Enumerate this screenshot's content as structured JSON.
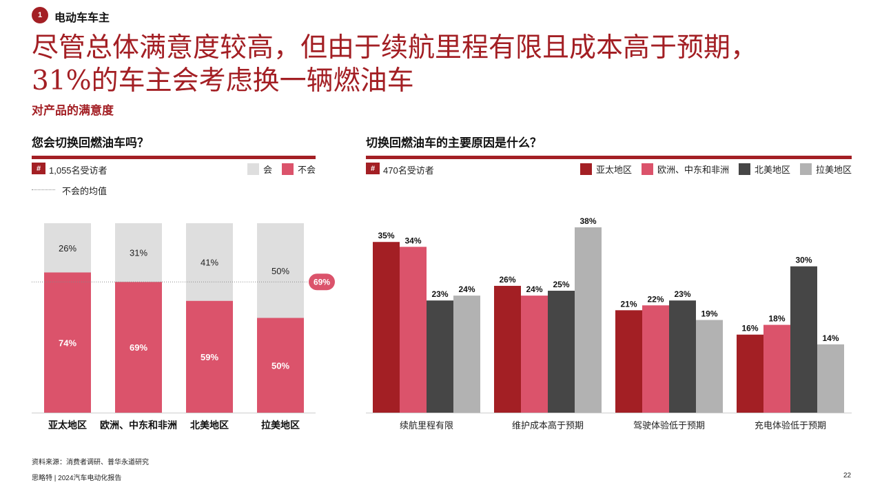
{
  "header": {
    "section_number": "1",
    "section_label": "电动车车主",
    "headline_line1": "尽管总体满意度较高，但由于续航里程有限且成本高于预期，",
    "headline_line2": "31%的车主会考虑换一辆燃油车",
    "subtitle": "对产品的满意度"
  },
  "left_panel": {
    "title": "您会切换回燃油车吗？",
    "hash_symbol": "#",
    "respondents": "1,055名受访者",
    "legend": [
      {
        "label": "会",
        "color": "#dedede"
      },
      {
        "label": "不会",
        "color": "#db536b"
      }
    ],
    "avg_line_label": "不会的均值",
    "avg_badge": "69%"
  },
  "right_panel": {
    "title": "切换回燃油车的主要原因是什么？",
    "hash_symbol": "#",
    "respondents": "470名受访者",
    "legend": [
      {
        "label": "亚太地区",
        "color": "#a31f24"
      },
      {
        "label": "欧洲、中东和非洲",
        "color": "#db536b"
      },
      {
        "label": "北美地区",
        "color": "#464646"
      },
      {
        "label": "拉美地区",
        "color": "#b2b2b2"
      }
    ]
  },
  "chart_data": [
    {
      "type": "bar",
      "stacked": true,
      "title": "您会切换回燃油车吗？",
      "categories": [
        "亚太地区",
        "欧洲、中东和非洲",
        "北美地区",
        "拉美地区"
      ],
      "series": [
        {
          "name": "不会",
          "values": [
            74,
            69,
            59,
            50
          ],
          "labels": [
            "74%",
            "69%",
            "59%",
            "50%"
          ],
          "color": "#db536b"
        },
        {
          "name": "会",
          "values": [
            26,
            31,
            41,
            50
          ],
          "labels": [
            "26%",
            "31%",
            "41%",
            "50%"
          ],
          "color": "#dedede"
        }
      ],
      "average": {
        "name": "不会的均值",
        "value": 69,
        "label": "69%"
      },
      "ylim": [
        0,
        100
      ],
      "legend_position": "top-right",
      "grid": false
    },
    {
      "type": "bar",
      "title": "切换回燃油车的主要原因是什么？",
      "categories": [
        "续航里程有限",
        "维护成本高于预期",
        "驾驶体验低于预期",
        "充电体验低于预期"
      ],
      "series": [
        {
          "name": "亚太地区",
          "values": [
            35,
            26,
            21,
            16
          ],
          "labels": [
            "35%",
            "26%",
            "21%",
            "16%"
          ],
          "color": "#a31f24"
        },
        {
          "name": "欧洲、中东和非洲",
          "values": [
            34,
            24,
            22,
            18
          ],
          "labels": [
            "34%",
            "24%",
            "22%",
            "18%"
          ],
          "color": "#db536b"
        },
        {
          "name": "北美地区",
          "values": [
            23,
            25,
            23,
            30
          ],
          "labels": [
            "23%",
            "25%",
            "23%",
            "30%"
          ],
          "color": "#464646"
        },
        {
          "name": "拉美地区",
          "values": [
            24,
            38,
            19,
            14
          ],
          "labels": [
            "24%",
            "38%",
            "19%",
            "14%"
          ],
          "color": "#b2b2b2"
        }
      ],
      "ylim": [
        0,
        38
      ],
      "legend_position": "top-right",
      "grid": false
    }
  ],
  "footer": {
    "source": "资料来源：消费者调研、普华永道研究",
    "publisher": "思略特 | 2024汽车电动化报告",
    "page_number": "22"
  }
}
